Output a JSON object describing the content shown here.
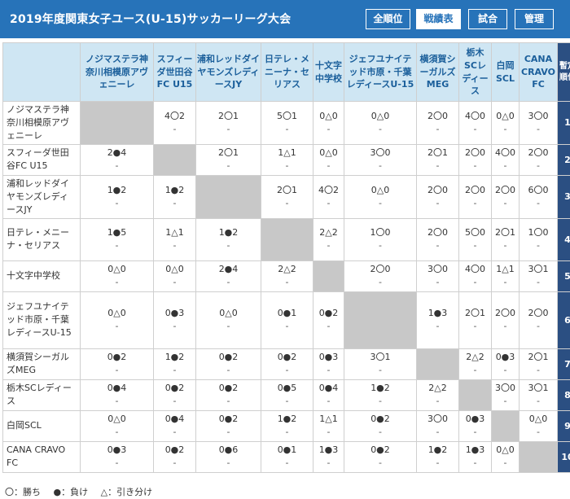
{
  "header": {
    "title": "2019年度関東女子ユース(U-15)サッカーリーグ大会",
    "tabs": [
      {
        "label": "全順位",
        "active": false
      },
      {
        "label": "戦績表",
        "active": true
      },
      {
        "label": "試合",
        "active": false
      },
      {
        "label": "管理",
        "active": false
      }
    ]
  },
  "table": {
    "rank_header": "暫定順位",
    "columns": [
      "ノジマステラ神奈川相模原アヴェニーレ",
      "スフィーダ世田谷FC U15",
      "浦和レッドダイヤモンズレディースJY",
      "日テレ・メニーナ・セリアス",
      "十文字中学校",
      "ジェフユナイテッド市原・千葉レディースU-15",
      "横須賀シーガルズMEG",
      "栃木SCレディース",
      "白岡SCL",
      "CANA CRAVO FC"
    ],
    "rows": [
      {
        "team": "ノジマステラ神奈川相模原アヴェニーレ",
        "rank": "1",
        "results": [
          null,
          "4〇2",
          "2〇1",
          "5〇1",
          "0△0",
          "0△0",
          "2〇0",
          "4〇0",
          "0△0",
          "3〇0"
        ]
      },
      {
        "team": "スフィーダ世田谷FC U15",
        "rank": "2",
        "results": [
          "2●4",
          null,
          "2〇1",
          "1△1",
          "0△0",
          "3〇0",
          "2〇1",
          "2〇0",
          "4〇0",
          "2〇0"
        ]
      },
      {
        "team": "浦和レッドダイヤモンズレディースJY",
        "rank": "3",
        "results": [
          "1●2",
          "1●2",
          null,
          "2〇1",
          "4〇2",
          "0△0",
          "2〇0",
          "2〇0",
          "2〇0",
          "6〇0"
        ]
      },
      {
        "team": "日テレ・メニーナ・セリアス",
        "rank": "4",
        "results": [
          "1●5",
          "1△1",
          "1●2",
          null,
          "2△2",
          "1〇0",
          "2〇0",
          "5〇0",
          "2〇1",
          "1〇0"
        ]
      },
      {
        "team": "十文字中学校",
        "rank": "5",
        "results": [
          "0△0",
          "0△0",
          "2●4",
          "2△2",
          null,
          "2〇0",
          "3〇0",
          "4〇0",
          "1△1",
          "3〇1"
        ]
      },
      {
        "team": "ジェフユナイテッド市原・千葉レディースU-15",
        "rank": "6",
        "results": [
          "0△0",
          "0●3",
          "0△0",
          "0●1",
          "0●2",
          null,
          "1●3",
          "2〇1",
          "2〇0",
          "2〇0"
        ]
      },
      {
        "team": "横須賀シーガルズMEG",
        "rank": "7",
        "results": [
          "0●2",
          "1●2",
          "0●2",
          "0●2",
          "0●3",
          "3〇1",
          null,
          "2△2",
          "0●3",
          "2〇1"
        ]
      },
      {
        "team": "栃木SCレディース",
        "rank": "8",
        "results": [
          "0●4",
          "0●2",
          "0●2",
          "0●5",
          "0●4",
          "1●2",
          "2△2",
          null,
          "3〇0",
          "3〇1"
        ]
      },
      {
        "team": "白岡SCL",
        "rank": "9",
        "results": [
          "0△0",
          "0●4",
          "0●2",
          "1●2",
          "1△1",
          "0●2",
          "3〇0",
          "0●3",
          null,
          "0△0"
        ]
      },
      {
        "team": "CANA CRAVO FC",
        "rank": "10",
        "results": [
          "0●3",
          "0●2",
          "0●6",
          "0●1",
          "1●3",
          "0●2",
          "1●2",
          "1●3",
          "0△0",
          null
        ]
      }
    ],
    "sub_mark": "-"
  },
  "legend": [
    "〇：勝ち",
    "●：負け",
    "△：引き分け"
  ],
  "colors": {
    "header_bar": "#2773b9",
    "column_header_bg": "#cfe6f3",
    "rank_bg": "#2b4f82",
    "self_cell_bg": "#c8c8c8"
  }
}
